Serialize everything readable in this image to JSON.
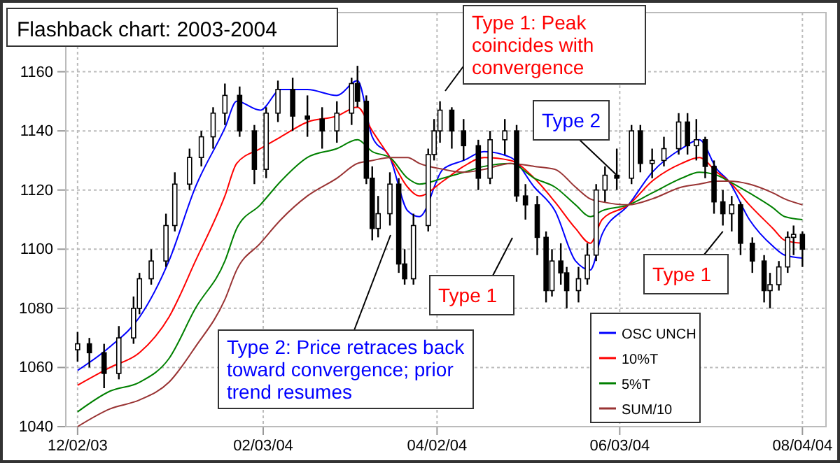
{
  "chart_data": {
    "type": "candlestick",
    "title": "Flashback chart: 2003-2004",
    "x": [
      "2003-12-02",
      "2003-12-06",
      "2003-12-11",
      "2003-12-16",
      "2003-12-21",
      "2003-12-23",
      "2003-12-27",
      "2004-01-01",
      "2004-01-04",
      "2004-01-09",
      "2004-01-13",
      "2004-01-17",
      "2004-01-21",
      "2004-01-26",
      "2004-01-31",
      "2004-02-04",
      "2004-02-08",
      "2004-02-13",
      "2004-02-18",
      "2004-02-23",
      "2004-02-28",
      "2004-03-04",
      "2004-03-06",
      "2004-03-09",
      "2004-03-11",
      "2004-03-13",
      "2004-03-17",
      "2004-03-20",
      "2004-03-22",
      "2004-03-25",
      "2004-03-30",
      "2004-04-01",
      "2004-04-03",
      "2004-04-07",
      "2004-04-11",
      "2004-04-16",
      "2004-04-20",
      "2004-04-25",
      "2004-04-29",
      "2004-05-02",
      "2004-05-06",
      "2004-05-09",
      "2004-05-11",
      "2004-05-14",
      "2004-05-16",
      "2004-05-20",
      "2004-05-23",
      "2004-05-26",
      "2004-05-29",
      "2004-06-02",
      "2004-06-07",
      "2004-06-10",
      "2004-06-14",
      "2004-06-18",
      "2004-06-23",
      "2004-06-26",
      "2004-06-29",
      "2004-07-02",
      "2004-07-05",
      "2004-07-08",
      "2004-07-11",
      "2004-07-14",
      "2004-07-18",
      "2004-07-22",
      "2004-07-24",
      "2004-07-27",
      "2004-07-30",
      "2004-08-01",
      "2004-08-04"
    ],
    "ohlc": [
      [
        1066,
        1072,
        1062,
        1068
      ],
      [
        1068,
        1070,
        1060,
        1065
      ],
      [
        1065,
        1068,
        1053,
        1058
      ],
      [
        1058,
        1074,
        1056,
        1070
      ],
      [
        1070,
        1084,
        1068,
        1080
      ],
      [
        1080,
        1092,
        1078,
        1090
      ],
      [
        1090,
        1100,
        1088,
        1096
      ],
      [
        1096,
        1112,
        1094,
        1108
      ],
      [
        1108,
        1126,
        1106,
        1122
      ],
      [
        1122,
        1134,
        1120,
        1131
      ],
      [
        1131,
        1140,
        1128,
        1138
      ],
      [
        1138,
        1148,
        1134,
        1146
      ],
      [
        1146,
        1156,
        1142,
        1152
      ],
      [
        1152,
        1155,
        1138,
        1140
      ],
      [
        1140,
        1142,
        1122,
        1127
      ],
      [
        1127,
        1148,
        1124,
        1146
      ],
      [
        1146,
        1157,
        1143,
        1154
      ],
      [
        1154,
        1158,
        1140,
        1145
      ],
      [
        1145,
        1152,
        1138,
        1144
      ],
      [
        1144,
        1148,
        1134,
        1140
      ],
      [
        1140,
        1150,
        1136,
        1146
      ],
      [
        1146,
        1158,
        1142,
        1156
      ],
      [
        1156,
        1162,
        1148,
        1150
      ],
      [
        1150,
        1152,
        1122,
        1124
      ],
      [
        1124,
        1128,
        1103,
        1107
      ],
      [
        1107,
        1118,
        1104,
        1112
      ],
      [
        1112,
        1126,
        1108,
        1122
      ],
      [
        1122,
        1124,
        1092,
        1095
      ],
      [
        1095,
        1100,
        1088,
        1090
      ],
      [
        1090,
        1112,
        1088,
        1108
      ],
      [
        1108,
        1134,
        1106,
        1132
      ],
      [
        1132,
        1144,
        1130,
        1140
      ],
      [
        1140,
        1150,
        1136,
        1147
      ],
      [
        1147,
        1148,
        1134,
        1140
      ],
      [
        1140,
        1144,
        1130,
        1135
      ],
      [
        1135,
        1137,
        1120,
        1124
      ],
      [
        1124,
        1140,
        1122,
        1137
      ],
      [
        1137,
        1144,
        1132,
        1140
      ],
      [
        1140,
        1142,
        1116,
        1118
      ],
      [
        1118,
        1122,
        1110,
        1115
      ],
      [
        1115,
        1118,
        1098,
        1104
      ],
      [
        1104,
        1106,
        1082,
        1086
      ],
      [
        1086,
        1100,
        1084,
        1096
      ],
      [
        1096,
        1102,
        1088,
        1092
      ],
      [
        1092,
        1094,
        1080,
        1086
      ],
      [
        1086,
        1094,
        1082,
        1090
      ],
      [
        1090,
        1102,
        1088,
        1098
      ],
      [
        1098,
        1122,
        1096,
        1120
      ],
      [
        1120,
        1128,
        1116,
        1125
      ],
      [
        1125,
        1134,
        1120,
        1124
      ],
      [
        1124,
        1142,
        1122,
        1140
      ],
      [
        1140,
        1142,
        1126,
        1129
      ],
      [
        1129,
        1134,
        1124,
        1130
      ],
      [
        1130,
        1138,
        1128,
        1134
      ],
      [
        1134,
        1146,
        1132,
        1143
      ],
      [
        1143,
        1146,
        1132,
        1135
      ],
      [
        1135,
        1144,
        1130,
        1137
      ],
      [
        1137,
        1138,
        1124,
        1128
      ],
      [
        1128,
        1130,
        1112,
        1116
      ],
      [
        1116,
        1120,
        1108,
        1112
      ],
      [
        1112,
        1118,
        1106,
        1115
      ],
      [
        1115,
        1116,
        1098,
        1102
      ],
      [
        1102,
        1104,
        1092,
        1096
      ],
      [
        1096,
        1098,
        1082,
        1086
      ],
      [
        1086,
        1092,
        1080,
        1088
      ],
      [
        1088,
        1096,
        1086,
        1094
      ],
      [
        1094,
        1106,
        1092,
        1104
      ],
      [
        1104,
        1108,
        1098,
        1105
      ],
      [
        1105,
        1106,
        1094,
        1100
      ]
    ],
    "series": [
      {
        "type": "line",
        "name": "OSC UNCH",
        "color": "#0000ff",
        "x": [
          "2003-12-02",
          "2003-12-13",
          "2003-12-23",
          "2004-01-02",
          "2004-01-11",
          "2004-01-21",
          "2004-01-25",
          "2004-02-02",
          "2004-02-09",
          "2004-02-18",
          "2004-02-28",
          "2004-03-06",
          "2004-03-11",
          "2004-03-17",
          "2004-03-23",
          "2004-03-27",
          "2004-04-04",
          "2004-04-11",
          "2004-04-18",
          "2004-04-27",
          "2004-05-05",
          "2004-05-12",
          "2004-05-19",
          "2004-05-24",
          "2004-05-28",
          "2004-06-06",
          "2004-06-14",
          "2004-06-24",
          "2004-06-30",
          "2004-07-06",
          "2004-07-10",
          "2004-07-17",
          "2004-07-25",
          "2004-07-29",
          "2004-08-04"
        ],
        "values": [
          1059,
          1067,
          1077,
          1096,
          1121,
          1141,
          1150,
          1147,
          1154,
          1154,
          1152,
          1157,
          1138,
          1131,
          1113,
          1111,
          1127,
          1130,
          1133,
          1131,
          1121,
          1113,
          1096,
          1093,
          1105,
          1115,
          1126,
          1134,
          1137,
          1127,
          1123,
          1110,
          1101,
          1098,
          1097
        ]
      },
      {
        "type": "line",
        "name": "10%T",
        "color": "#ff0000",
        "x": [
          "2003-12-02",
          "2003-12-13",
          "2003-12-23",
          "2004-01-02",
          "2004-01-11",
          "2004-01-21",
          "2004-01-25",
          "2004-02-02",
          "2004-02-09",
          "2004-02-18",
          "2004-02-28",
          "2004-03-06",
          "2004-03-11",
          "2004-03-17",
          "2004-03-23",
          "2004-03-27",
          "2004-04-04",
          "2004-04-11",
          "2004-04-18",
          "2004-04-27",
          "2004-05-05",
          "2004-05-12",
          "2004-05-19",
          "2004-05-24",
          "2004-05-28",
          "2004-06-06",
          "2004-06-14",
          "2004-06-24",
          "2004-06-30",
          "2004-07-06",
          "2004-07-10",
          "2004-07-17",
          "2004-07-25",
          "2004-07-29",
          "2004-08-04"
        ],
        "values": [
          1054,
          1060,
          1065,
          1077,
          1096,
          1118,
          1129,
          1134,
          1138,
          1143,
          1145,
          1148,
          1140,
          1131,
          1121,
          1118,
          1123,
          1128,
          1131,
          1130,
          1124,
          1116,
          1107,
          1102,
          1110,
          1115,
          1123,
          1129,
          1131,
          1126,
          1123,
          1115,
          1107,
          1103,
          1102
        ]
      },
      {
        "type": "line",
        "name": "5%T",
        "color": "#008000",
        "x": [
          "2003-12-02",
          "2003-12-13",
          "2003-12-23",
          "2004-01-02",
          "2004-01-11",
          "2004-01-21",
          "2004-01-25",
          "2004-02-02",
          "2004-02-09",
          "2004-02-18",
          "2004-02-28",
          "2004-03-06",
          "2004-03-11",
          "2004-03-17",
          "2004-03-23",
          "2004-03-27",
          "2004-04-04",
          "2004-04-11",
          "2004-04-18",
          "2004-04-27",
          "2004-05-05",
          "2004-05-12",
          "2004-05-19",
          "2004-05-24",
          "2004-05-28",
          "2004-06-06",
          "2004-06-14",
          "2004-06-24",
          "2004-06-30",
          "2004-07-06",
          "2004-07-10",
          "2004-07-17",
          "2004-07-25",
          "2004-07-29",
          "2004-08-04"
        ],
        "values": [
          1045,
          1052,
          1055,
          1063,
          1080,
          1096,
          1107,
          1115,
          1123,
          1131,
          1134,
          1137,
          1133,
          1131,
          1124,
          1122,
          1124,
          1126,
          1128,
          1129,
          1124,
          1121,
          1115,
          1111,
          1113,
          1115,
          1119,
          1124,
          1126,
          1125,
          1123,
          1119,
          1114,
          1111,
          1110
        ]
      },
      {
        "type": "line",
        "name": "SUM/10",
        "color": "#993333",
        "x": [
          "2003-12-02",
          "2003-12-13",
          "2003-12-23",
          "2004-01-02",
          "2004-01-11",
          "2004-01-21",
          "2004-01-25",
          "2004-02-02",
          "2004-02-09",
          "2004-02-18",
          "2004-02-28",
          "2004-03-06",
          "2004-03-11",
          "2004-03-17",
          "2004-03-23",
          "2004-03-27",
          "2004-04-04",
          "2004-04-11",
          "2004-04-18",
          "2004-04-27",
          "2004-05-05",
          "2004-05-12",
          "2004-05-19",
          "2004-05-24",
          "2004-05-28",
          "2004-06-06",
          "2004-06-14",
          "2004-06-24",
          "2004-06-30",
          "2004-07-06",
          "2004-07-10",
          "2004-07-17",
          "2004-07-25",
          "2004-07-29",
          "2004-08-04"
        ],
        "values": [
          1040,
          1046,
          1049,
          1055,
          1067,
          1083,
          1093,
          1102,
          1110,
          1118,
          1124,
          1129,
          1130,
          1131,
          1131,
          1129,
          1127,
          1126,
          1127,
          1129,
          1128,
          1127,
          1121,
          1117,
          1116,
          1115,
          1117,
          1121,
          1122,
          1123,
          1123,
          1122,
          1119,
          1117,
          1115
        ]
      }
    ],
    "xlim": [
      "2003-11-28",
      "2004-08-12"
    ],
    "xticks": [
      {
        "value": "2003-12-02",
        "label": "12/02/03"
      },
      {
        "value": "2004-02-03",
        "label": "02/03/04"
      },
      {
        "value": "2004-04-02",
        "label": "04/02/04"
      },
      {
        "value": "2004-06-03",
        "label": "06/03/04"
      },
      {
        "value": "2004-08-04",
        "label": "08/04/04"
      }
    ],
    "ylim": [
      1040,
      1180
    ],
    "yticks": [
      1040,
      1060,
      1080,
      1100,
      1120,
      1140,
      1160
    ],
    "grid": true,
    "legend": "bottom right",
    "annotations": [
      "Type 1: Peak coincides with convergence",
      {
        "text": "Type 2",
        "x": "2004-06-02",
        "y": 1125
      },
      "Type 1",
      {
        "text": "Type 1",
        "x": "2004-07-08",
        "y": 1106
      },
      "Type 2: Price retraces back toward convergence; prior trend resumes"
    ]
  }
}
